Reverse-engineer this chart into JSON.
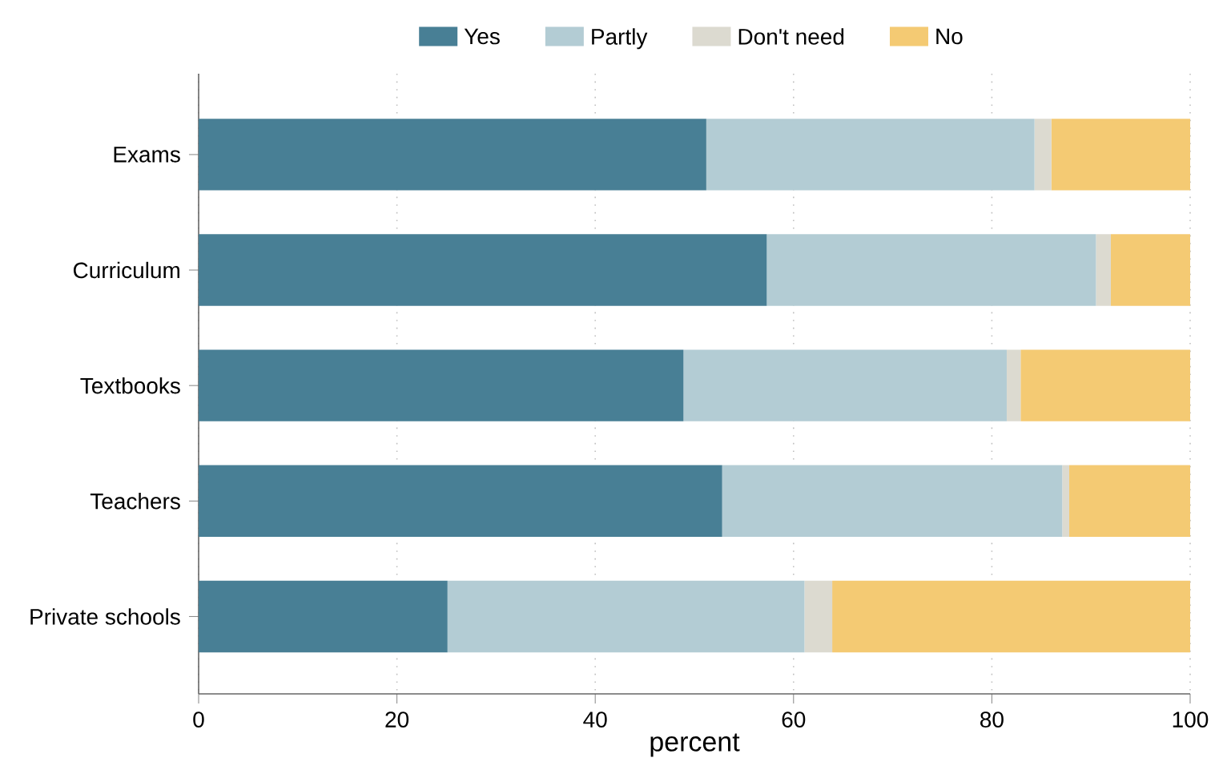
{
  "chart_data": {
    "type": "bar",
    "orientation": "horizontal",
    "stacked": true,
    "xlabel": "percent",
    "categories": [
      "Exams",
      "Curriculum",
      "Textbooks",
      "Teachers",
      "Private schools"
    ],
    "series": [
      {
        "name": "Yes",
        "color": "#487f95",
        "values": [
          51.2,
          57.3,
          48.9,
          52.8,
          25.1
        ]
      },
      {
        "name": "Partly",
        "color": "#b3ccd4",
        "values": [
          33.1,
          33.2,
          32.6,
          34.3,
          36.0
        ]
      },
      {
        "name": "Don't need",
        "color": "#dcdad0",
        "values": [
          1.7,
          1.5,
          1.4,
          0.7,
          2.8
        ]
      },
      {
        "name": "No",
        "color": "#f4ca73",
        "values": [
          14.0,
          8.0,
          17.1,
          12.2,
          36.1
        ]
      }
    ],
    "xlim": [
      0,
      100
    ],
    "xticks": [
      0,
      20,
      40,
      60,
      80,
      100
    ],
    "grid": "x",
    "legend": "top"
  }
}
